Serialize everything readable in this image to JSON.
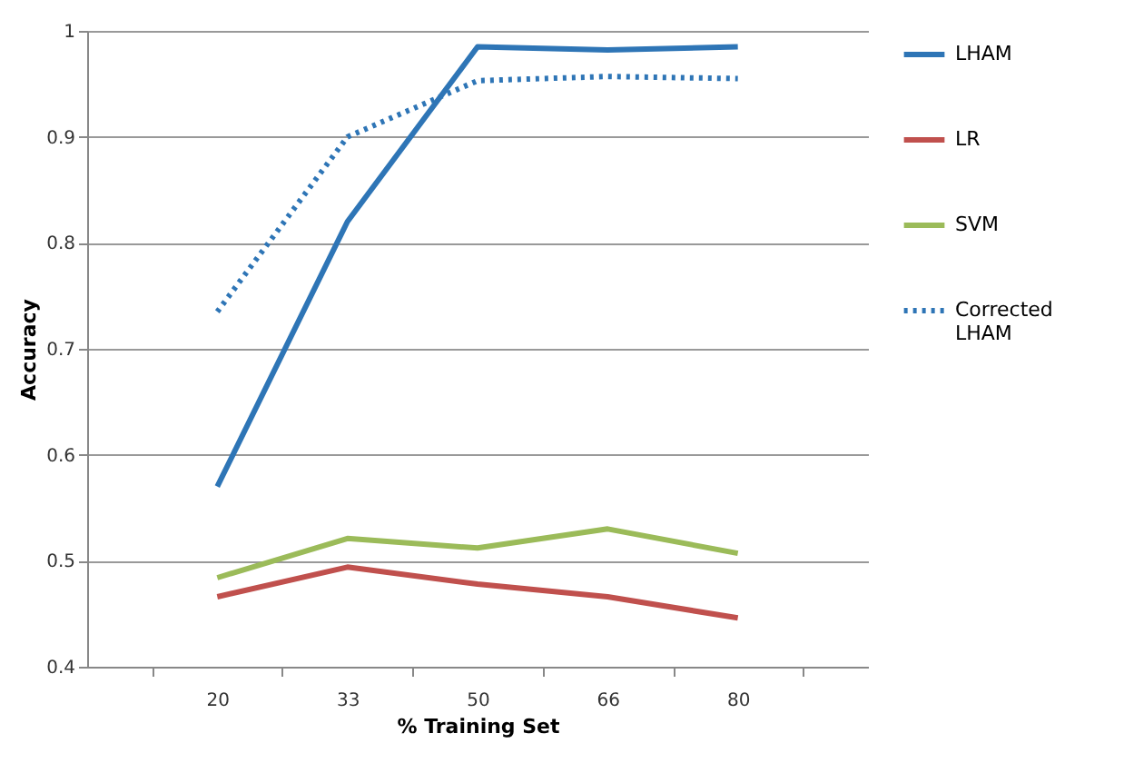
{
  "chart_data": {
    "type": "line",
    "xlabel": "% Training Set",
    "ylabel": "Accuracy",
    "categories": [
      "20",
      "33",
      "50",
      "66",
      "80"
    ],
    "series": [
      {
        "name": "LHAM",
        "color": "#2e75b6",
        "line_style": "solid",
        "values": [
          0.57,
          0.82,
          0.985,
          0.982,
          0.985
        ]
      },
      {
        "name": "LR",
        "color": "#c0504d",
        "line_style": "solid",
        "values": [
          0.466,
          0.494,
          0.478,
          0.466,
          0.446
        ]
      },
      {
        "name": "SVM",
        "color": "#9bbb59",
        "line_style": "solid",
        "values": [
          0.484,
          0.521,
          0.512,
          0.53,
          0.507
        ]
      },
      {
        "name": "Corrected LHAM",
        "color": "#2e75b6",
        "line_style": "dotted",
        "values": [
          0.735,
          0.9,
          0.953,
          0.957,
          0.955
        ]
      }
    ],
    "ylim": [
      0.4,
      1
    ],
    "yticks": [
      0.4,
      0.5,
      0.6,
      0.7,
      0.8,
      0.9,
      {
        "value": 1,
        "label": "1"
      }
    ],
    "grid": "y",
    "legend": "right",
    "marker": "none"
  }
}
